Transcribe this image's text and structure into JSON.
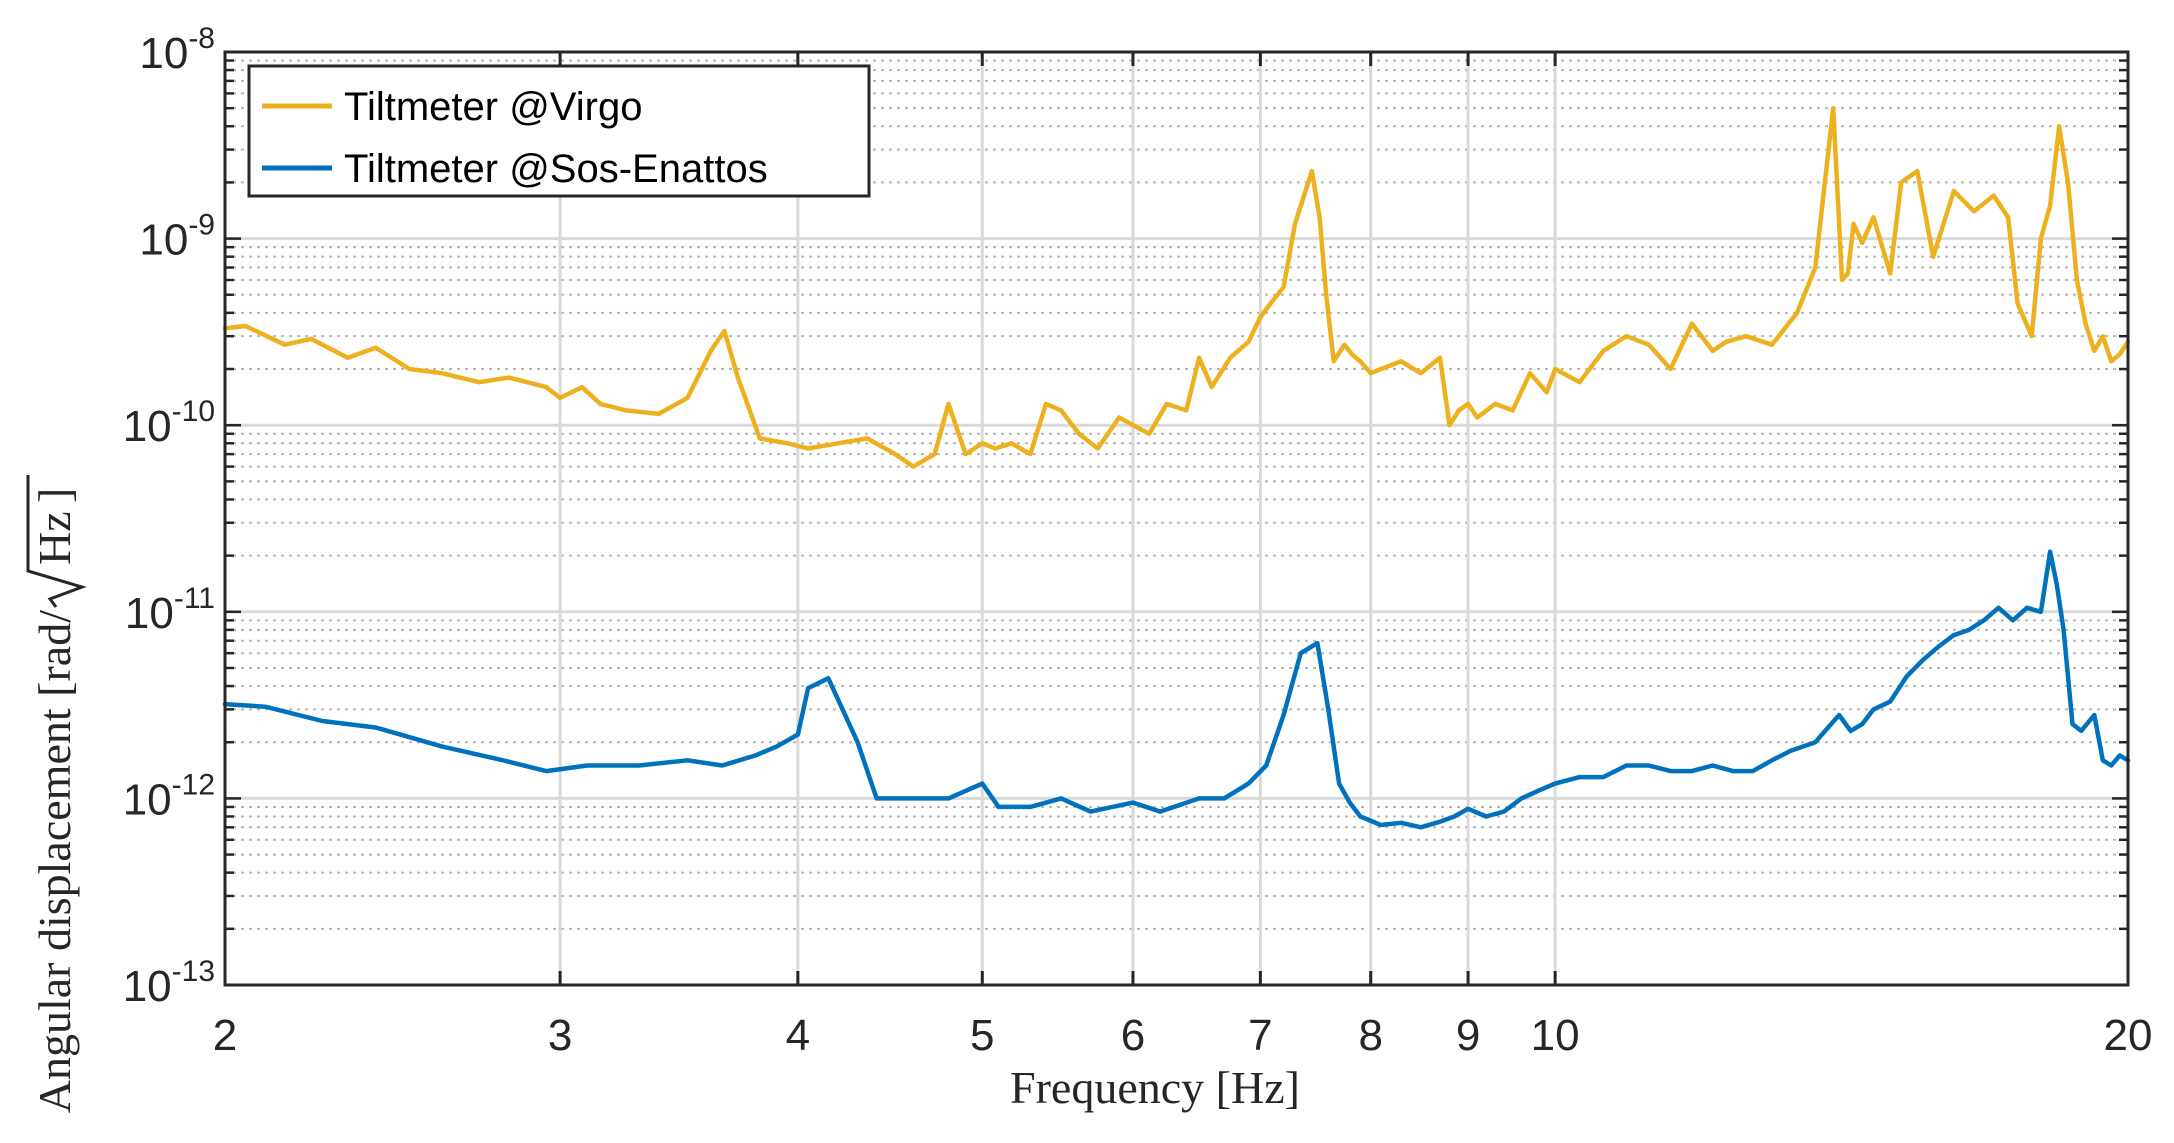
{
  "chart_data": {
    "type": "line",
    "title": "",
    "xlabel": "Frequency [Hz]",
    "ylabel": "Angular displacement [rad/",
    "ylabel_unit": "Hz",
    "ylabel_close": "]",
    "xscale": "log",
    "yscale": "log",
    "xlim": [
      2,
      20
    ],
    "ylim": [
      1e-13,
      1e-08
    ],
    "xticks": [
      {
        "value": 2,
        "label": "2"
      },
      {
        "value": 3,
        "label": "3"
      },
      {
        "value": 4,
        "label": "4"
      },
      {
        "value": 5,
        "label": "5"
      },
      {
        "value": 6,
        "label": "6"
      },
      {
        "value": 7,
        "label": "7"
      },
      {
        "value": 8,
        "label": "8"
      },
      {
        "value": 9,
        "label": "9"
      },
      {
        "value": 10,
        "label": "10"
      },
      {
        "value": 20,
        "label": "20"
      }
    ],
    "yticks": [
      {
        "value": 1e-13,
        "base": "10",
        "exp": "-13"
      },
      {
        "value": 1e-12,
        "base": "10",
        "exp": "-12"
      },
      {
        "value": 1e-11,
        "base": "10",
        "exp": "-11"
      },
      {
        "value": 1e-10,
        "base": "10",
        "exp": "-10"
      },
      {
        "value": 1e-09,
        "base": "10",
        "exp": "-9"
      },
      {
        "value": 1e-08,
        "base": "10",
        "exp": "-8"
      }
    ],
    "grid": true,
    "minor_grid": true,
    "legend_position": "top-left",
    "series": [
      {
        "name": "Tiltmeter @Virgo",
        "color": "#EDB120",
        "x": [
          2.0,
          2.05,
          2.15,
          2.22,
          2.32,
          2.4,
          2.5,
          2.6,
          2.72,
          2.82,
          2.95,
          3.0,
          3.08,
          3.15,
          3.25,
          3.38,
          3.5,
          3.6,
          3.66,
          3.72,
          3.82,
          3.95,
          4.05,
          4.2,
          4.35,
          4.5,
          4.6,
          4.72,
          4.8,
          4.9,
          5.0,
          5.08,
          5.18,
          5.3,
          5.4,
          5.5,
          5.62,
          5.75,
          5.9,
          6.0,
          6.12,
          6.25,
          6.4,
          6.5,
          6.6,
          6.75,
          6.9,
          7.0,
          7.1,
          7.2,
          7.3,
          7.45,
          7.52,
          7.58,
          7.65,
          7.75,
          7.82,
          7.9,
          8.0,
          8.1,
          8.3,
          8.5,
          8.7,
          8.8,
          8.9,
          9.0,
          9.1,
          9.3,
          9.5,
          9.7,
          9.9,
          10.0,
          10.3,
          10.6,
          10.9,
          11.2,
          11.5,
          11.8,
          12.1,
          12.3,
          12.6,
          13.0,
          13.4,
          13.7,
          14.0,
          14.15,
          14.25,
          14.35,
          14.5,
          14.7,
          15.0,
          15.2,
          15.5,
          15.8,
          16.2,
          16.6,
          17.0,
          17.3,
          17.5,
          17.8,
          18.0,
          18.2,
          18.4,
          18.6,
          18.8,
          19.0,
          19.2,
          19.4,
          19.6,
          19.8,
          20.0
        ],
        "y": [
          3.3e-10,
          3.4e-10,
          2.7e-10,
          2.9e-10,
          2.3e-10,
          2.6e-10,
          2e-10,
          1.9e-10,
          1.7e-10,
          1.8e-10,
          1.6e-10,
          1.4e-10,
          1.6e-10,
          1.3e-10,
          1.2e-10,
          1.15e-10,
          1.4e-10,
          2.5e-10,
          3.2e-10,
          1.8e-10,
          8.5e-11,
          8e-11,
          7.5e-11,
          8e-11,
          8.5e-11,
          7e-11,
          6e-11,
          7e-11,
          1.3e-10,
          7e-11,
          8e-11,
          7.5e-11,
          8e-11,
          7e-11,
          1.3e-10,
          1.2e-10,
          9e-11,
          7.5e-11,
          1.1e-10,
          1e-10,
          9e-11,
          1.3e-10,
          1.2e-10,
          2.3e-10,
          1.6e-10,
          2.3e-10,
          2.8e-10,
          3.8e-10,
          4.6e-10,
          5.5e-10,
          1.2e-09,
          2.3e-09,
          1.3e-09,
          5e-10,
          2.2e-10,
          2.7e-10,
          2.4e-10,
          2.2e-10,
          1.9e-10,
          2e-10,
          2.2e-10,
          1.9e-10,
          2.3e-10,
          1e-10,
          1.2e-10,
          1.3e-10,
          1.1e-10,
          1.3e-10,
          1.2e-10,
          1.9e-10,
          1.5e-10,
          2e-10,
          1.7e-10,
          2.5e-10,
          3e-10,
          2.7e-10,
          2e-10,
          3.5e-10,
          2.5e-10,
          2.8e-10,
          3e-10,
          2.7e-10,
          4e-10,
          7e-10,
          5e-09,
          6e-10,
          6.5e-10,
          1.2e-09,
          9.5e-10,
          1.3e-09,
          6.5e-10,
          2e-09,
          2.3e-09,
          8e-10,
          1.8e-09,
          1.4e-09,
          1.7e-09,
          1.3e-09,
          4.5e-10,
          3e-10,
          1e-09,
          1.5e-09,
          4e-09,
          2e-09,
          6e-10,
          3.5e-10,
          2.5e-10,
          3e-10,
          2.2e-10,
          2.4e-10,
          2.8e-10
        ]
      },
      {
        "name": "Tiltmeter @Sos-Enattos",
        "color": "#0072BD",
        "x": [
          2.0,
          2.1,
          2.25,
          2.4,
          2.6,
          2.8,
          2.95,
          3.1,
          3.3,
          3.5,
          3.65,
          3.8,
          3.9,
          4.0,
          4.05,
          4.15,
          4.3,
          4.4,
          4.6,
          4.8,
          5.0,
          5.1,
          5.3,
          5.5,
          5.7,
          6.0,
          6.2,
          6.5,
          6.7,
          6.9,
          7.05,
          7.2,
          7.35,
          7.5,
          7.6,
          7.7,
          7.8,
          7.9,
          8.1,
          8.3,
          8.5,
          8.7,
          8.85,
          9.0,
          9.2,
          9.4,
          9.6,
          9.8,
          10.0,
          10.3,
          10.6,
          10.9,
          11.2,
          11.5,
          11.8,
          12.1,
          12.4,
          12.7,
          13.0,
          13.3,
          13.7,
          14.1,
          14.3,
          14.5,
          14.7,
          15.0,
          15.3,
          15.6,
          15.9,
          16.2,
          16.5,
          16.8,
          17.1,
          17.4,
          17.7,
          18.0,
          18.2,
          18.35,
          18.5,
          18.7,
          18.9,
          19.2,
          19.4,
          19.6,
          19.8,
          20.0
        ],
        "y": [
          3.2e-12,
          3.1e-12,
          2.6e-12,
          2.4e-12,
          1.9e-12,
          1.6e-12,
          1.4e-12,
          1.5e-12,
          1.5e-12,
          1.6e-12,
          1.5e-12,
          1.7e-12,
          1.9e-12,
          2.2e-12,
          3.9e-12,
          4.4e-12,
          2e-12,
          1e-12,
          1e-12,
          1e-12,
          1.2e-12,
          9e-13,
          9e-13,
          1e-12,
          8.5e-13,
          9.5e-13,
          8.5e-13,
          1e-12,
          1e-12,
          1.2e-12,
          1.5e-12,
          2.8e-12,
          6e-12,
          6.8e-12,
          3e-12,
          1.2e-12,
          9.5e-13,
          8e-13,
          7.2e-13,
          7.4e-13,
          7e-13,
          7.5e-13,
          8e-13,
          8.8e-13,
          8e-13,
          8.5e-13,
          1e-12,
          1.1e-12,
          1.2e-12,
          1.3e-12,
          1.3e-12,
          1.5e-12,
          1.5e-12,
          1.4e-12,
          1.4e-12,
          1.5e-12,
          1.4e-12,
          1.4e-12,
          1.6e-12,
          1.8e-12,
          2e-12,
          2.8e-12,
          2.3e-12,
          2.5e-12,
          3e-12,
          3.3e-12,
          4.5e-12,
          5.5e-12,
          6.5e-12,
          7.5e-12,
          8e-12,
          9e-12,
          1.05e-11,
          9e-12,
          1.05e-11,
          1e-11,
          2.1e-11,
          1.4e-11,
          8e-12,
          2.5e-12,
          2.3e-12,
          2.8e-12,
          1.6e-12,
          1.5e-12,
          1.7e-12,
          1.6e-12
        ]
      }
    ]
  }
}
